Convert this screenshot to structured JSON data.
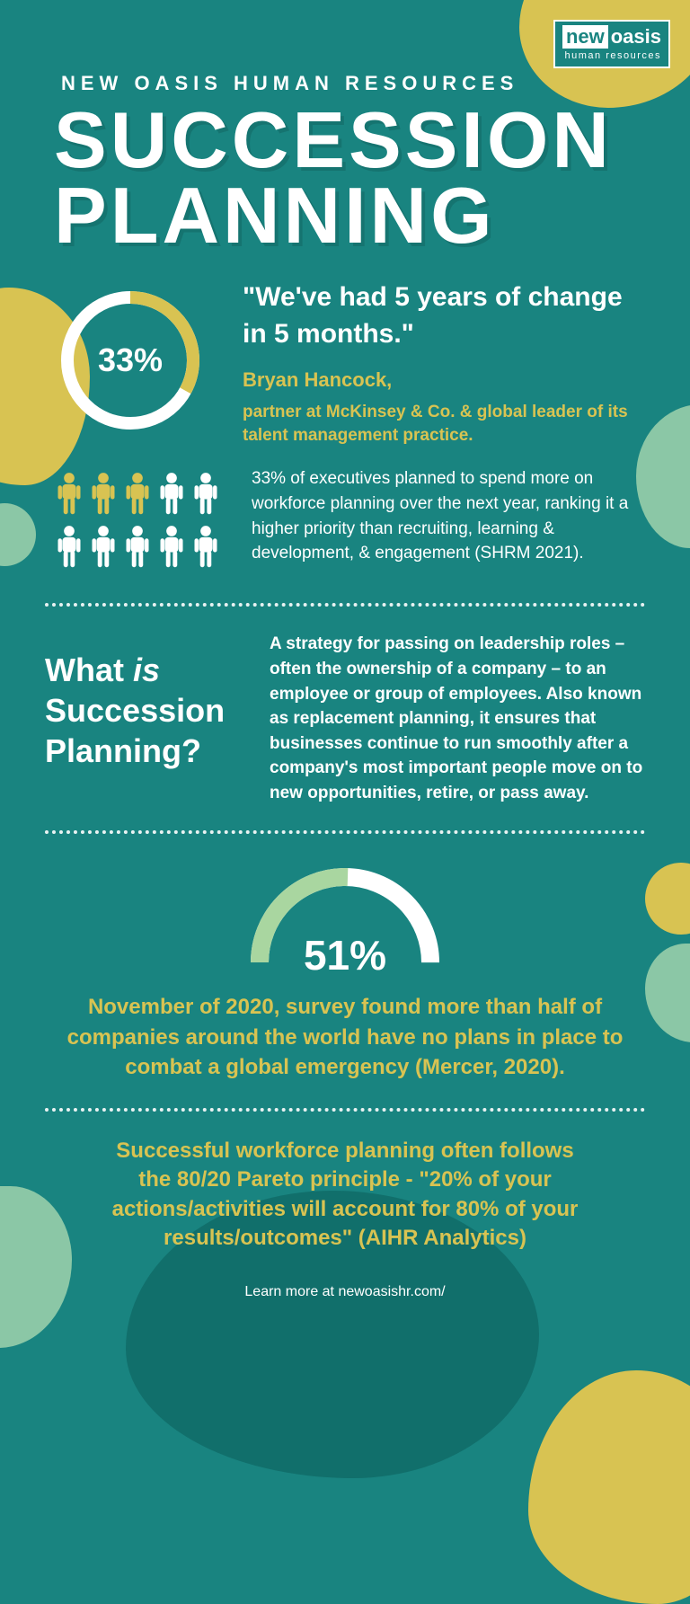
{
  "logo": {
    "word1": "new",
    "word2": "oasis",
    "sub": "human resources"
  },
  "subheading": "NEW OASIS HUMAN RESOURCES",
  "title_line1": "SUCCESSION",
  "title_line2": "PLANNING",
  "donut": {
    "percent": 33,
    "label": "33%",
    "track_color": "#ffffff",
    "fill_color": "#d8c352",
    "stroke_width": 14,
    "radius": 70
  },
  "quote": "\"We've had 5 years of change in 5 months.\"",
  "quote_name": "Bryan Hancock,",
  "quote_role": "partner at McKinsey & Co. & global leader of its talent management practice.",
  "people_icons": {
    "total": 10,
    "per_row": 5,
    "highlighted": 3,
    "highlight_color": "#d8c352",
    "normal_color": "#ffffff"
  },
  "stat_text": "33% of executives planned to spend more on workforce planning over the next year, ranking it a higher priority than recruiting, learning & development, & engagement (SHRM 2021).",
  "what_title_pre": "What ",
  "what_title_em": "is",
  "what_title_post": " Succession Planning?",
  "what_body": "A strategy for passing on leadership roles – often the ownership of a company – to an employee or group of employees. Also known as replacement planning, it ensures that businesses continue to run smoothly after a company's most important people move on to new opportunities, retire, or pass away.",
  "gauge": {
    "percent": 51,
    "label": "51%",
    "track_color": "#ffffff",
    "fill_color": "#a9d6a0",
    "stroke_width": 20,
    "radius": 95
  },
  "survey_text": "November of 2020, survey found more than half of companies around the world have no plans in place to combat a global emergency (Mercer, 2020).",
  "pareto_text": "Successful workforce planning often follows the 80/20 Pareto principle - \"20% of your actions/activities will account for 80% of your results/outcomes\" (AIHR Analytics)",
  "footer": "Learn more at newoasishr.com/",
  "colors": {
    "background": "#198480",
    "accent_yellow": "#d8c352",
    "accent_green": "#a9d6a0",
    "white": "#ffffff"
  }
}
